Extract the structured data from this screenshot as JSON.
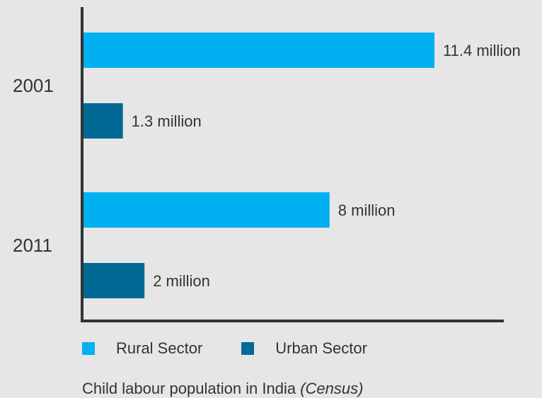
{
  "chart_data": {
    "type": "bar",
    "orientation": "horizontal",
    "categories": [
      "2001",
      "2011"
    ],
    "series": [
      {
        "name": "Rural Sector",
        "color": "#00b0f0",
        "values": [
          11.4,
          8
        ],
        "labels": [
          "11.4 million",
          "8 million"
        ]
      },
      {
        "name": "Urban Sector",
        "color": "#006a94",
        "values": [
          1.3,
          2
        ],
        "labels": [
          "1.3 million",
          "2 million"
        ]
      }
    ],
    "unit": "million",
    "legend_position": "bottom",
    "grid": false
  },
  "legend": {
    "rural_label": "Rural Sector",
    "urban_label": "Urban Sector"
  },
  "caption": {
    "main": "Child labour population in India ",
    "source": "(Census)"
  }
}
